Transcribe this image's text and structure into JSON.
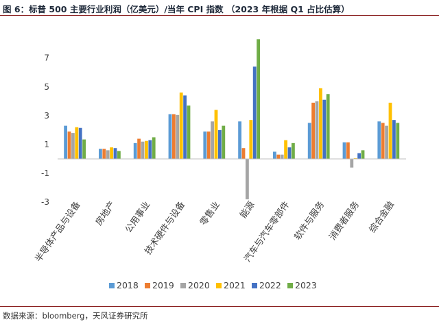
{
  "figure": {
    "title": "图 6：标普 500 主要行业利润（亿美元）/当年 CPI 指数 （2023 年根据 Q1 占比估算）",
    "source": "数据来源：bloomberg，天风证券研究所"
  },
  "colors": {
    "2018": "#5b9bd5",
    "2019": "#ed7d31",
    "2020": "#a5a5a5",
    "2021": "#ffc000",
    "2022": "#4472c4",
    "2023": "#70ad47",
    "rule": "#8a1f1f"
  },
  "chart_data": {
    "type": "bar",
    "title": "",
    "xlabel": "",
    "ylabel": "",
    "ylim": [
      -3.5,
      8.5
    ],
    "yticks": [
      7,
      5,
      3,
      1,
      -1,
      -3
    ],
    "legend_position": "bottom",
    "grid": false,
    "categories": [
      "半导体产品与设备",
      "房地产",
      "公用事业",
      "技术硬件与设备",
      "零售业",
      "能源",
      "汽车与汽车零部件",
      "软件与服务",
      "消费者服务",
      "综合金融"
    ],
    "series": [
      {
        "name": "2018",
        "values": [
          2.3,
          0.7,
          1.1,
          3.1,
          1.9,
          2.6,
          0.5,
          2.5,
          1.15,
          2.6
        ]
      },
      {
        "name": "2019",
        "values": [
          1.9,
          0.7,
          1.4,
          3.1,
          1.9,
          0.75,
          0.3,
          3.9,
          1.15,
          2.5
        ]
      },
      {
        "name": "2020",
        "values": [
          1.8,
          0.6,
          1.2,
          3.05,
          2.6,
          -2.8,
          0.3,
          4.0,
          -0.6,
          2.3
        ]
      },
      {
        "name": "2021",
        "values": [
          2.2,
          0.8,
          1.25,
          4.6,
          3.4,
          2.7,
          1.3,
          4.9,
          0.05,
          3.9
        ]
      },
      {
        "name": "2022",
        "values": [
          2.15,
          0.75,
          1.3,
          4.4,
          2.0,
          6.4,
          0.8,
          4.1,
          0.4,
          2.7
        ]
      },
      {
        "name": "2023",
        "values": [
          1.35,
          0.55,
          1.5,
          3.7,
          2.3,
          8.3,
          1.1,
          4.5,
          0.6,
          2.5
        ]
      }
    ]
  }
}
